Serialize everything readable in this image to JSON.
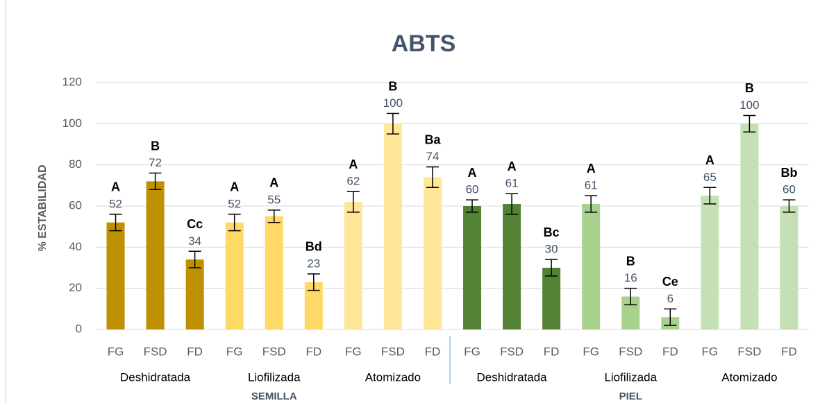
{
  "chart_data": {
    "type": "bar",
    "title": "ABTS",
    "y_label": "% ESTABILIDAD",
    "categories": [
      "FG",
      "FSD",
      "FD",
      "FG",
      "FSD",
      "FD",
      "FG",
      "FSD",
      "FD",
      "FG",
      "FSD",
      "FD",
      "FG",
      "FSD",
      "FD",
      "FG",
      "FSD",
      "FD"
    ],
    "group_labels": [
      "Deshidratada",
      "Liofilizada",
      "Atomizado",
      "Deshidratada",
      "Liofilizada",
      "Atomizado"
    ],
    "top_labels": [
      "SEMILLA",
      "PIEL"
    ],
    "values": [
      52,
      72,
      34,
      52,
      55,
      23,
      62,
      100,
      74,
      60,
      61,
      30,
      61,
      16,
      6,
      65,
      100,
      60
    ],
    "errors": [
      4,
      4,
      4,
      4,
      3,
      4,
      5,
      5,
      5,
      3,
      5,
      4,
      4,
      4,
      4,
      4,
      4,
      3
    ],
    "letters": [
      "A",
      "B",
      "Cc",
      "A",
      "A",
      "Bd",
      "A",
      "B",
      "Ba",
      "A",
      "A",
      "Bc",
      "A",
      "B",
      "Ce",
      "A",
      "B",
      "Bb"
    ],
    "colors": [
      "#BF9000",
      "#BF9000",
      "#BF9000",
      "#FFD966",
      "#FFD966",
      "#FFD966",
      "#FFE699",
      "#FFE699",
      "#FFE699",
      "#548235",
      "#548235",
      "#548235",
      "#A9D18E",
      "#A9D18E",
      "#A9D18E",
      "#C5E0B4",
      "#C5E0B4",
      "#C5E0B4"
    ],
    "ylim": [
      0,
      120
    ],
    "yticks": [
      0,
      20,
      40,
      60,
      80,
      100,
      120
    ],
    "grid": true
  }
}
